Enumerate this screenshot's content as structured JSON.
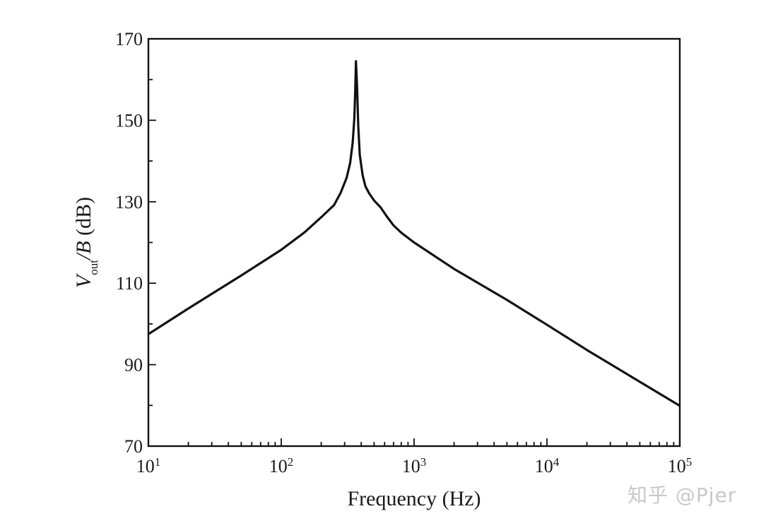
{
  "chart_data": {
    "type": "line",
    "title": "",
    "xlabel": "Frequency (Hz)",
    "ylabel_parts": {
      "main": "V",
      "sub": "out",
      "rest": "/B (dB)"
    },
    "xscale": "log",
    "xlim": [
      10,
      100000
    ],
    "ylim": [
      70,
      170
    ],
    "yticks": [
      70,
      90,
      110,
      130,
      150,
      170
    ],
    "ytick_labels": [
      "70",
      "90",
      "110",
      "130",
      "150",
      "170"
    ],
    "xticks": [
      10,
      100,
      1000,
      10000,
      100000
    ],
    "xtick_labels": [
      {
        "base": "10",
        "exp": "1"
      },
      {
        "base": "10",
        "exp": "2"
      },
      {
        "base": "10",
        "exp": "3"
      },
      {
        "base": "10",
        "exp": "4"
      },
      {
        "base": "10",
        "exp": "5"
      }
    ],
    "grid": false,
    "series": [
      {
        "x": [
          10,
          20,
          50,
          100,
          150,
          200,
          250,
          280,
          310,
          330,
          345,
          355,
          360,
          365,
          372,
          380,
          390,
          410,
          430,
          460,
          500,
          560,
          620,
          700,
          800,
          1000,
          2000,
          5000,
          10000,
          20000,
          50000,
          100000
        ],
        "y": [
          97.5,
          103.8,
          111.9,
          118.2,
          122.5,
          126.2,
          129.2,
          132.2,
          135.8,
          139.5,
          144.5,
          150.5,
          156.5,
          164.5,
          158.5,
          148.5,
          141.5,
          136.5,
          133.8,
          132.0,
          130.3,
          128.6,
          126.5,
          124.2,
          122.4,
          120.0,
          113.5,
          105.9,
          99.8,
          93.6,
          85.8,
          79.9
        ]
      }
    ]
  },
  "watermark": "知乎 @Pjer"
}
